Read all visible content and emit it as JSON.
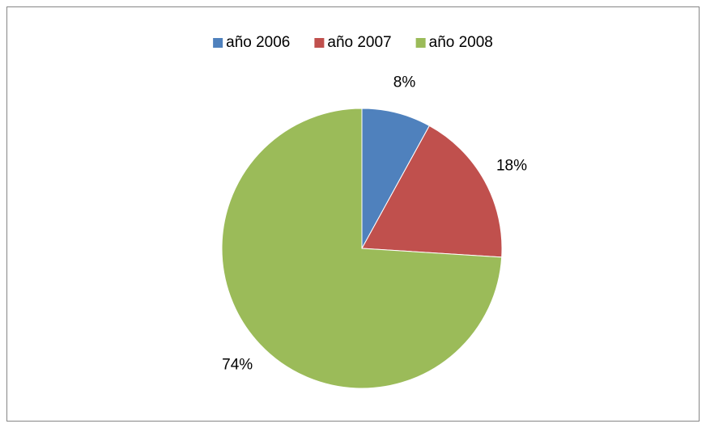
{
  "chart_data": {
    "type": "pie",
    "categories": [
      "año 2006",
      "año 2007",
      "año 2008"
    ],
    "values": [
      8,
      18,
      74
    ],
    "value_labels": [
      "8%",
      "18%",
      "74%"
    ],
    "colors": [
      "#4f81bd",
      "#c0504d",
      "#9bbb59"
    ],
    "legend": "top"
  }
}
